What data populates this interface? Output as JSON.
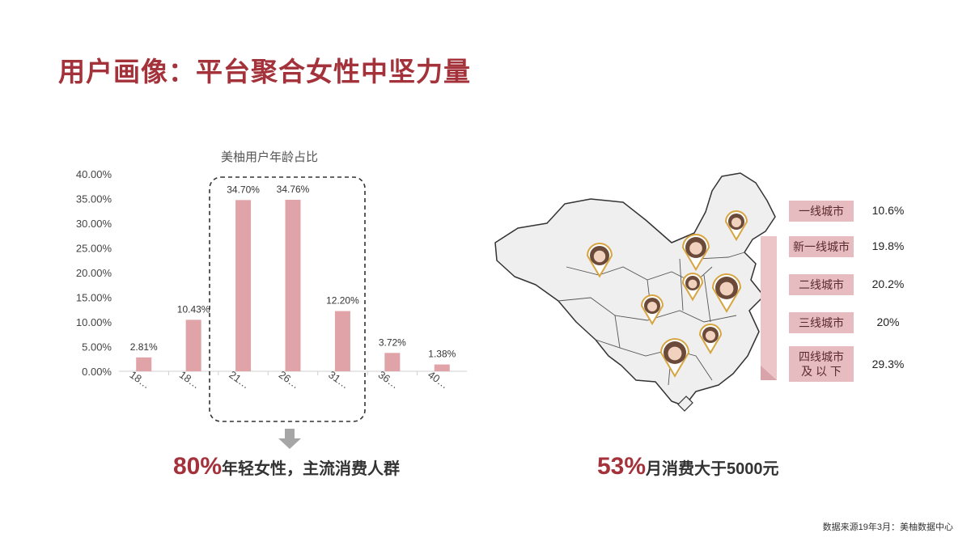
{
  "page": {
    "title": "用户画像：平台聚合女性中坚力量"
  },
  "chart_data": {
    "type": "bar",
    "title": "美柚用户年龄占比",
    "categories": [
      "18…",
      "18…",
      "21…",
      "26…",
      "31…",
      "36…",
      "40…"
    ],
    "values": [
      2.81,
      10.43,
      34.7,
      34.76,
      12.2,
      3.72,
      1.38
    ],
    "value_labels": [
      "2.81%",
      "10.43%",
      "34.70%",
      "34.76%",
      "12.20%",
      "3.72%",
      "1.38%"
    ],
    "y_ticks": [
      "0.00%",
      "5.00%",
      "10.00%",
      "15.00%",
      "20.00%",
      "25.00%",
      "30.00%",
      "35.00%",
      "40.00%"
    ],
    "ylim": [
      0,
      40
    ],
    "xlabel": "",
    "ylabel": "",
    "grid": false,
    "bar_color": "#e0a3a8",
    "highlight_range": [
      2,
      4
    ]
  },
  "callouts": {
    "left_pct": "80%",
    "left_text": "年轻女性，主流消费人群",
    "right_pct": "53%",
    "right_text": "月消费大于5000元"
  },
  "tiers": [
    {
      "label": "一线城市",
      "value": "10.6%"
    },
    {
      "label": "新一线城市",
      "value": "19.8%"
    },
    {
      "label": "二线城市",
      "value": "20.2%"
    },
    {
      "label": "三线城市",
      "value": "20%"
    },
    {
      "label": "四线城市\n及 以 下",
      "value": "29.3%"
    }
  ],
  "source": "数据来源19年3月：美柚数据中心",
  "colors": {
    "accent": "#a4323b",
    "bar": "#e0a3a8",
    "tier_bg": "#e6bcc1",
    "map_fill": "#efefef"
  },
  "icons": {
    "arrow": "down-arrow-icon",
    "map": "china-map-icon",
    "pin": "map-pin-avatar-icon"
  }
}
